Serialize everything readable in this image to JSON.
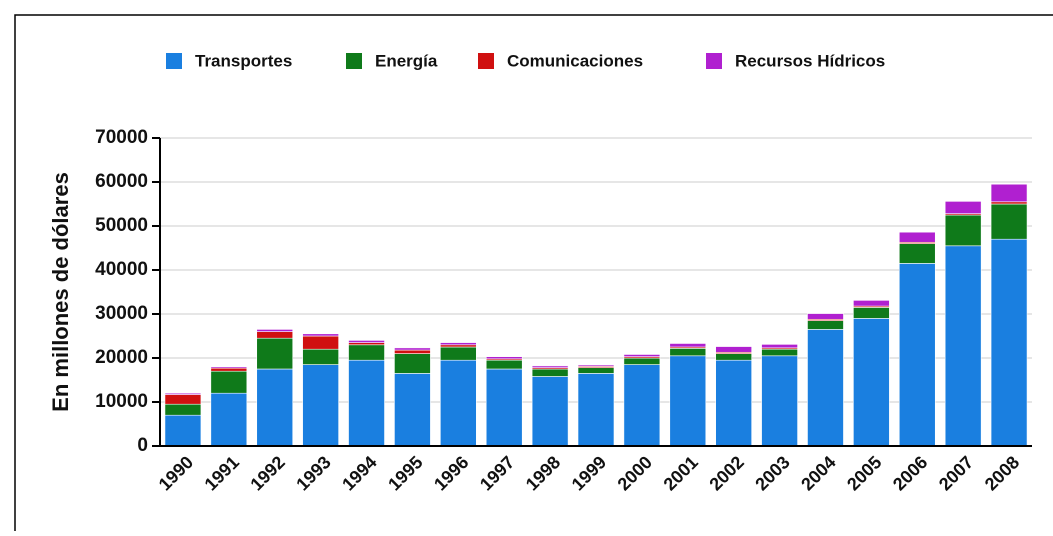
{
  "chart_data": {
    "type": "stacked_bar",
    "y_label": "En millones de dólares",
    "categories": [
      "1990",
      "1991",
      "1992",
      "1993",
      "1994",
      "1995",
      "1996",
      "1997",
      "1998",
      "1999",
      "2000",
      "2001",
      "2002",
      "2003",
      "2004",
      "2005",
      "2006",
      "2007",
      "2008"
    ],
    "series": [
      {
        "name": "Transportes",
        "color": "#1a7fe0",
        "values": [
          7000,
          12000,
          17500,
          18500,
          19500,
          16500,
          19500,
          17500,
          15800,
          16500,
          18500,
          20500,
          19500,
          20500,
          26500,
          29000,
          41500,
          45500,
          47000
        ]
      },
      {
        "name": "Energía",
        "color": "#0f7a1a",
        "values": [
          2500,
          5000,
          7000,
          3500,
          3500,
          4500,
          3000,
          2000,
          1700,
          1300,
          1500,
          1700,
          1500,
          1500,
          2000,
          2500,
          4500,
          7000,
          8000
        ]
      },
      {
        "name": "Comunicaciones",
        "color": "#d01010",
        "values": [
          2200,
          700,
          1500,
          3000,
          500,
          800,
          500,
          300,
          300,
          300,
          300,
          300,
          300,
          300,
          300,
          300,
          300,
          300,
          500
        ]
      },
      {
        "name": "Recursos Hídricos",
        "color": "#b020d0",
        "values": [
          300,
          300,
          500,
          500,
          500,
          500,
          500,
          500,
          400,
          300,
          500,
          800,
          1300,
          800,
          1300,
          1300,
          2300,
          2800,
          4000
        ]
      }
    ],
    "ylim": [
      0,
      70000
    ],
    "yticks": [
      0,
      10000,
      20000,
      30000,
      40000,
      50000,
      60000,
      70000
    ],
    "grid": true
  }
}
